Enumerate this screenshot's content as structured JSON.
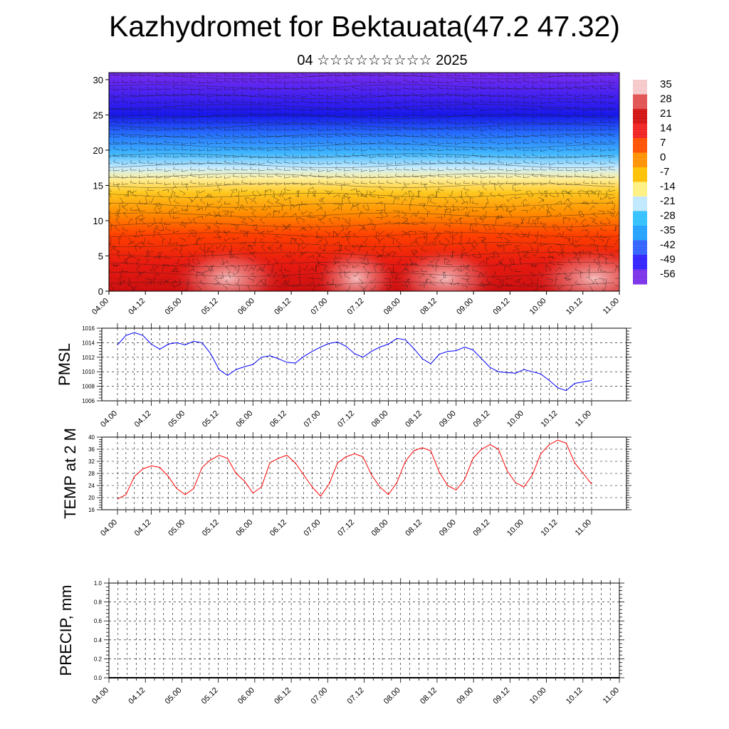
{
  "title": "Kazhydromet for Bektauata(47.2 47.32)",
  "subtitle": "04 ☆☆☆☆☆☆☆☆☆ 2025",
  "time_labels": [
    "04.00",
    "04.12",
    "05.00",
    "05.12",
    "06.00",
    "06.12",
    "07.00",
    "07.12",
    "08.00",
    "08.12",
    "09.00",
    "09.12",
    "10.00",
    "10.12",
    "11.00"
  ],
  "colors": {
    "pmsl_line": "#0000ff",
    "temp_line": "#ff0000"
  },
  "chart_data": [
    {
      "type": "heatmap",
      "name": "vertical-profile",
      "ylim": [
        0,
        31
      ],
      "yticks": [
        0,
        5,
        10,
        15,
        20,
        25,
        30
      ],
      "colorbar_labels": [
        "35",
        "28",
        "21",
        "14",
        "7",
        "0",
        "-7",
        "-14",
        "-21",
        "-28",
        "-35",
        "-42",
        "-49",
        "-56"
      ],
      "colorbar_colors": [
        "#f6c8c8",
        "#e25050",
        "#d21010",
        "#f02020",
        "#ff5000",
        "#ff9000",
        "#ffc000",
        "#fff080",
        "#bfe8ff",
        "#30c0ff",
        "#20a0ff",
        "#3060ff",
        "#3020ff",
        "#7a30e8"
      ],
      "profile_colors": [
        {
          "h": 0,
          "color": "#cc1010"
        },
        {
          "h": 4,
          "color": "#e81a10"
        },
        {
          "h": 8,
          "color": "#ff4000"
        },
        {
          "h": 11,
          "color": "#ff8c00"
        },
        {
          "h": 14,
          "color": "#ffc820"
        },
        {
          "h": 16,
          "color": "#fff0a0"
        },
        {
          "h": 17.5,
          "color": "#c8ecff"
        },
        {
          "h": 19.5,
          "color": "#40b8ff"
        },
        {
          "h": 22,
          "color": "#2878ff"
        },
        {
          "h": 25,
          "color": "#1818e8"
        },
        {
          "h": 27.5,
          "color": "#4020f0"
        },
        {
          "h": 31,
          "color": "#7a2cf0"
        }
      ]
    },
    {
      "type": "line",
      "name": "pmsl",
      "ylabel": "PMSL",
      "ylim": [
        1006,
        1016
      ],
      "yticks": [
        1006,
        1008,
        1010,
        1012,
        1014,
        1016
      ],
      "x": [
        0,
        3,
        6,
        9,
        12,
        15,
        18,
        21,
        24,
        27,
        30,
        33,
        36,
        39,
        42,
        45,
        48,
        51,
        54,
        57,
        60,
        63,
        66,
        69,
        72,
        75,
        78,
        81,
        84,
        87,
        90,
        93,
        96,
        99,
        102,
        105,
        108,
        111,
        114,
        117,
        120,
        123,
        126,
        129,
        132,
        135,
        138,
        141,
        144,
        147,
        150,
        153,
        156,
        159,
        162,
        165,
        168
      ],
      "values": [
        1013.7,
        1015.0,
        1015.4,
        1015.0,
        1013.8,
        1013.1,
        1013.8,
        1014.0,
        1013.7,
        1014.2,
        1014.0,
        1012.5,
        1010.3,
        1009.5,
        1010.3,
        1010.7,
        1011.0,
        1012.0,
        1012.2,
        1011.8,
        1011.3,
        1011.2,
        1012.1,
        1012.8,
        1013.4,
        1013.9,
        1014.1,
        1013.5,
        1012.5,
        1012.0,
        1012.8,
        1013.4,
        1013.8,
        1014.6,
        1014.4,
        1013.2,
        1011.8,
        1011.1,
        1012.4,
        1012.8,
        1012.9,
        1013.4,
        1013.0,
        1011.8,
        1010.6,
        1010.0,
        1009.9,
        1009.8,
        1010.3,
        1010.0,
        1009.7,
        1008.8,
        1007.8,
        1007.4,
        1008.4,
        1008.6,
        1008.8
      ],
      "color": "#0000ff"
    },
    {
      "type": "line",
      "name": "temp-2m",
      "ylabel": "TEMP at 2 M",
      "ylim": [
        16,
        40
      ],
      "yticks": [
        16,
        20,
        24,
        28,
        32,
        36,
        40
      ],
      "x": [
        0,
        3,
        6,
        9,
        12,
        15,
        18,
        21,
        24,
        27,
        30,
        33,
        36,
        39,
        42,
        45,
        48,
        51,
        54,
        57,
        60,
        63,
        66,
        69,
        72,
        75,
        78,
        81,
        84,
        87,
        90,
        93,
        96,
        99,
        102,
        105,
        108,
        111,
        114,
        117,
        120,
        123,
        126,
        129,
        132,
        135,
        138,
        141,
        144,
        147,
        150,
        153,
        156,
        159,
        162,
        165,
        168
      ],
      "values": [
        19.5,
        21.0,
        27.0,
        29.5,
        30.5,
        30.0,
        27.0,
        23.0,
        21.0,
        23.0,
        30.0,
        32.5,
        34.0,
        33.0,
        28.0,
        25.5,
        21.5,
        23.5,
        31.5,
        33.0,
        34.0,
        31.5,
        27.5,
        23.5,
        20.5,
        24.5,
        31.5,
        33.5,
        34.5,
        33.5,
        27.5,
        23.5,
        21.0,
        25.0,
        32.0,
        35.5,
        36.5,
        35.5,
        28.5,
        24.0,
        22.5,
        26.0,
        33.0,
        36.0,
        37.5,
        36.0,
        29.0,
        25.0,
        23.5,
        27.5,
        34.5,
        37.5,
        39.0,
        38.0,
        31.5,
        28.0,
        24.5
      ],
      "color": "#ff0000"
    },
    {
      "type": "line",
      "name": "precip",
      "ylabel": "PRECIP, mm",
      "ylim": [
        0,
        1
      ],
      "yticks": [
        "0.0",
        "0.2",
        "0.4",
        "0.6",
        "0.8",
        "1.0"
      ],
      "x": [
        0,
        168
      ],
      "values": [
        0,
        0
      ],
      "color": "#000000"
    }
  ]
}
